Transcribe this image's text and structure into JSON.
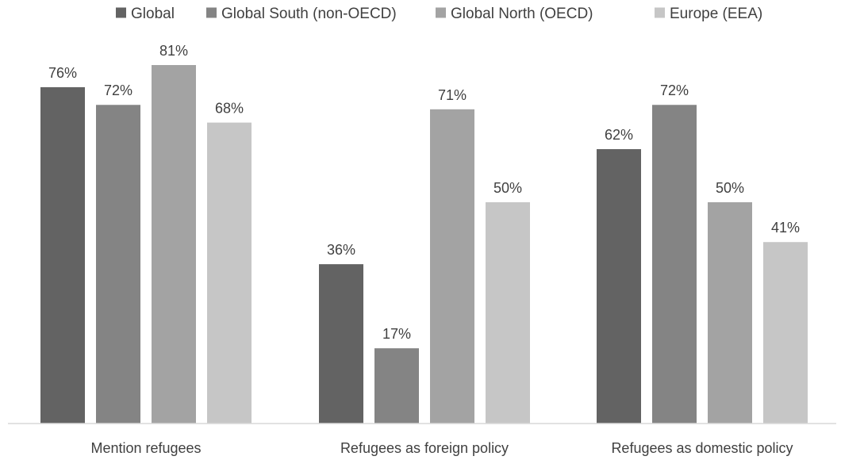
{
  "chart_data": {
    "type": "bar",
    "title": "",
    "xlabel": "",
    "ylabel": "",
    "ylim": [
      0,
      100
    ],
    "grid": false,
    "legend_position": "top",
    "categories": [
      "Mention refugees",
      "Refugees as foreign policy",
      "Refugees as domestic policy"
    ],
    "series": [
      {
        "name": "Global",
        "color": "#636363",
        "values": [
          76,
          36,
          62
        ],
        "labels": [
          "76%",
          "36%",
          "62%"
        ]
      },
      {
        "name": "Global South (non-OECD)",
        "color": "#848484",
        "values": [
          72,
          17,
          72
        ],
        "labels": [
          "72%",
          "17%",
          "72%"
        ]
      },
      {
        "name": "Global North (OECD)",
        "color": "#a3a3a3",
        "values": [
          81,
          71,
          50
        ],
        "labels": [
          "81%",
          "71%",
          "50%"
        ]
      },
      {
        "name": "Europe (EEA)",
        "color": "#c6c6c6",
        "values": [
          68,
          50,
          41
        ],
        "labels": [
          "68%",
          "50%",
          "41%"
        ]
      }
    ]
  }
}
